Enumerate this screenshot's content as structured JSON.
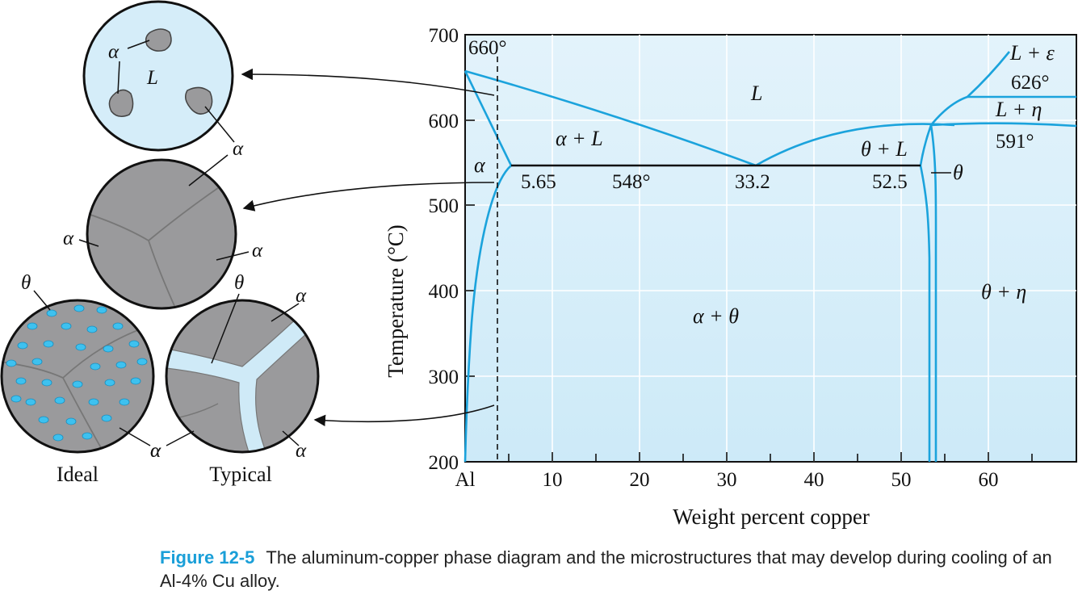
{
  "diagram": {
    "colors": {
      "plot_bg": "#d7eefa",
      "curve": "#1ba3dc",
      "eutectic_line": "#111111",
      "grain": "#9a9a9c",
      "theta_particle": "#3ec1ef",
      "circle_bg": "#d5edf9"
    },
    "axes": {
      "xlabel": "Weight percent copper",
      "ylabel": "Temperature (°C)",
      "x_ticks": [
        "Al",
        "10",
        "20",
        "30",
        "40",
        "50",
        "60"
      ],
      "y_ticks": [
        "200",
        "300",
        "400",
        "500",
        "600",
        "700"
      ],
      "xlim": [
        0,
        70
      ],
      "ylim": [
        200,
        700
      ]
    },
    "points": {
      "al_melting": {
        "label": "660°",
        "wt": 0,
        "temp": 660
      },
      "eutectic_temp": {
        "label": "548°",
        "temp": 548
      },
      "alpha_max": {
        "label": "5.65",
        "wt": 5.65
      },
      "eutectic_comp": {
        "label": "33.2",
        "wt": 33.2
      },
      "theta_left": {
        "label": "52.5",
        "wt": 52.5
      },
      "peritectic_626": {
        "label": "626°",
        "temp": 626
      },
      "peritectic_591": {
        "label": "591°",
        "temp": 591
      }
    },
    "regions": {
      "liquid": "L",
      "alpha_plus_liquid": "α + L",
      "alpha": "α",
      "theta_plus_liquid": "θ + L",
      "theta": "θ",
      "liquid_plus_epsilon": "L + ε",
      "liquid_plus_eta": "L + η",
      "alpha_plus_theta": "α + θ",
      "theta_plus_eta": "θ + η"
    },
    "alloy_line_wt": 4,
    "micro_labels": {
      "alpha": "α",
      "theta": "θ",
      "liquid": "L",
      "ideal": "Ideal",
      "typical": "Typical"
    }
  },
  "caption": {
    "label": "Figure 12-5",
    "text": "The aluminum-copper phase diagram and the microstructures that may develop during cooling of an Al-4% Cu alloy."
  }
}
